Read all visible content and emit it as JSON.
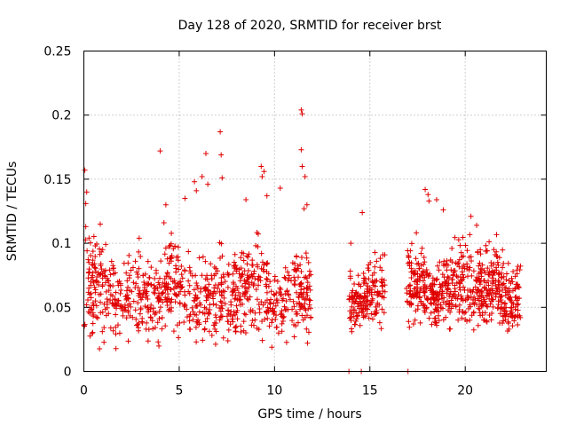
{
  "chart_data": {
    "type": "scatter",
    "title": "Day 128 of 2020, SRMTID for receiver brst",
    "xlabel": "GPS time / hours",
    "ylabel": "SRMTID / TECUs",
    "xlim": [
      0,
      24.25
    ],
    "ylim": [
      0,
      0.25
    ],
    "x_ticks": [
      0,
      5,
      10,
      15,
      20
    ],
    "x_tick_labels": [
      "0",
      "5",
      "10",
      "15",
      "20"
    ],
    "y_ticks": [
      0,
      0.05,
      0.1,
      0.15,
      0.2,
      0.25
    ],
    "y_tick_labels": [
      "0",
      "0.05",
      "0.1",
      "0.15",
      "0.2",
      "0.25"
    ],
    "grid": true,
    "marker": "+",
    "color": "#e00000",
    "series": [
      {
        "name": "SRMTID",
        "segments": [
          {
            "x_range": [
              0.0,
              11.9
            ],
            "y_range": [
              0.012,
              0.115
            ],
            "count": 900,
            "seed": 11
          },
          {
            "x_range": [
              13.9,
              15.8
            ],
            "y_range": [
              0.023,
              0.105
            ],
            "count": 170,
            "seed": 23
          },
          {
            "x_range": [
              16.9,
              22.9
            ],
            "y_range": [
              0.022,
              0.115
            ],
            "count": 620,
            "seed": 37
          }
        ],
        "points": [
          [
            0.05,
            0.157
          ],
          [
            0.15,
            0.14
          ],
          [
            0.1,
            0.131
          ],
          [
            0.1,
            0.113
          ],
          [
            2.9,
            0.104
          ],
          [
            4.0,
            0.172
          ],
          [
            4.2,
            0.116
          ],
          [
            4.3,
            0.13
          ],
          [
            5.3,
            0.135
          ],
          [
            5.8,
            0.148
          ],
          [
            5.9,
            0.141
          ],
          [
            6.2,
            0.152
          ],
          [
            6.4,
            0.17
          ],
          [
            6.5,
            0.146
          ],
          [
            7.15,
            0.187
          ],
          [
            7.2,
            0.169
          ],
          [
            7.25,
            0.151
          ],
          [
            8.5,
            0.134
          ],
          [
            9.3,
            0.16
          ],
          [
            9.35,
            0.152
          ],
          [
            9.45,
            0.156
          ],
          [
            9.6,
            0.137
          ],
          [
            10.3,
            0.143
          ],
          [
            11.4,
            0.204
          ],
          [
            11.45,
            0.201
          ],
          [
            11.4,
            0.173
          ],
          [
            11.45,
            0.16
          ],
          [
            11.6,
            0.152
          ],
          [
            11.55,
            0.127
          ],
          [
            11.7,
            0.13
          ],
          [
            14.6,
            0.124
          ],
          [
            14.0,
            0.1
          ],
          [
            17.9,
            0.142
          ],
          [
            18.05,
            0.138
          ],
          [
            18.1,
            0.133
          ],
          [
            18.5,
            0.134
          ],
          [
            18.85,
            0.126
          ],
          [
            20.3,
            0.121
          ],
          [
            20.6,
            0.114
          ],
          [
            13.9,
            0.0
          ],
          [
            14.55,
            0.0
          ],
          [
            17.0,
            0.0
          ]
        ]
      }
    ]
  }
}
